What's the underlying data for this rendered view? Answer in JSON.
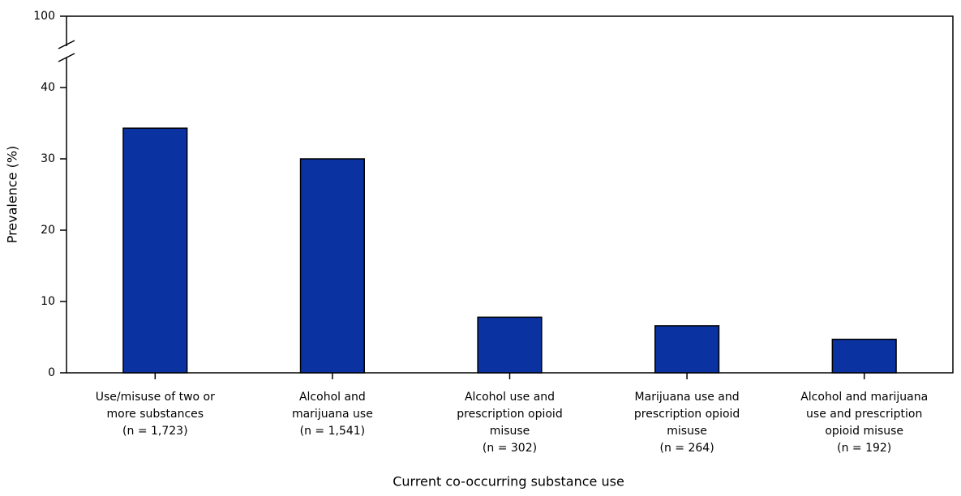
{
  "chart_data": {
    "type": "bar",
    "x_label": "Current co-occurring substance use",
    "y_label": "Prevalence (%)",
    "categories": [
      [
        "Use/misuse of two or",
        "more substances",
        "(n = 1,723)"
      ],
      [
        "Alcohol and",
        "marijuana use",
        "(n = 1,541)"
      ],
      [
        "Alcohol use and",
        "prescription opioid",
        "misuse",
        "(n = 302)"
      ],
      [
        "Marijuana use and",
        "prescription opioid",
        "misuse",
        "(n = 264)"
      ],
      [
        "Alcohol and marijuana",
        "use and prescription",
        "opioid misuse",
        "(n = 192)"
      ]
    ],
    "values": [
      34.3,
      30.0,
      7.8,
      6.6,
      4.7
    ],
    "color": "#0a32a0",
    "ylim": [
      0,
      100
    ],
    "yticks": [
      0,
      10,
      20,
      30,
      40,
      100
    ],
    "axis_break": [
      40,
      100
    ]
  }
}
